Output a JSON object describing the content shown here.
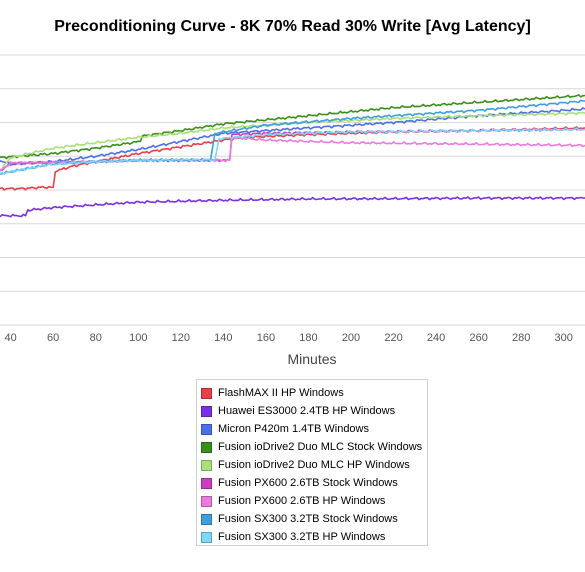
{
  "chart_data": {
    "type": "line",
    "title": "Preconditioning Curve - 8K 70% Read 30% Write [Avg Latency]",
    "xlabel": "Minutes",
    "ylabel": "",
    "xlim": [
      35,
      310
    ],
    "xticks": [
      40,
      60,
      80,
      100,
      120,
      140,
      160,
      180,
      200,
      220,
      240,
      260,
      280,
      300
    ],
    "ylim": [
      0,
      10
    ],
    "grid": true,
    "legend_position": "bottom",
    "series": [
      {
        "name": "FlashMAX II HP Windows",
        "color": "#e8404a",
        "x": [
          35,
          45,
          55,
          60,
          61,
          70,
          80,
          100,
          120,
          140,
          150,
          180,
          220,
          260,
          310
        ],
        "y": [
          5.05,
          5.05,
          5.1,
          5.1,
          5.7,
          5.9,
          6.05,
          6.35,
          6.6,
          6.85,
          6.95,
          7.05,
          7.15,
          7.2,
          7.3
        ]
      },
      {
        "name": "Huawei ES3000 2.4TB HP Windows",
        "color": "#7b2fe6",
        "x": [
          35,
          47,
          48,
          60,
          80,
          100,
          140,
          180,
          220,
          260,
          310
        ],
        "y": [
          4.05,
          4.05,
          4.25,
          4.35,
          4.45,
          4.55,
          4.62,
          4.67,
          4.68,
          4.7,
          4.7
        ]
      },
      {
        "name": "Micron P420m 1.4TB Windows",
        "color": "#4a6fe8",
        "x": [
          35,
          40,
          60,
          80,
          100,
          120,
          140,
          180,
          220,
          260,
          310
        ],
        "y": [
          6.1,
          5.95,
          6.05,
          6.25,
          6.5,
          6.8,
          7.1,
          7.3,
          7.5,
          7.75,
          8.0
        ]
      },
      {
        "name": "Fusion ioDrive2 Duo MLC Stock Windows",
        "color": "#3a8f1c",
        "x": [
          35,
          60,
          80,
          101,
          102,
          120,
          140,
          180,
          220,
          260,
          310
        ],
        "y": [
          6.2,
          6.35,
          6.55,
          6.8,
          7.0,
          7.2,
          7.45,
          7.75,
          8.05,
          8.25,
          8.5
        ]
      },
      {
        "name": "Fusion ioDrive2 Duo MLC HP Windows",
        "color": "#a8e07a",
        "x": [
          35,
          40,
          60,
          80,
          100,
          120,
          140,
          180,
          220,
          260,
          310
        ],
        "y": [
          5.7,
          6.2,
          6.55,
          6.75,
          6.95,
          7.1,
          7.3,
          7.5,
          7.65,
          7.75,
          7.85
        ]
      },
      {
        "name": "Fusion PX600 2.6TB Stock Windows",
        "color": "#c83fbf",
        "x": [
          35,
          40,
          80,
          100,
          140,
          143,
          144,
          160,
          200,
          260,
          310
        ],
        "y": [
          5.7,
          6.0,
          6.05,
          6.1,
          6.1,
          6.1,
          7.05,
          7.1,
          7.15,
          7.2,
          7.25
        ]
      },
      {
        "name": "Fusion PX600 2.6TB HP Windows",
        "color": "#e87ae0",
        "x": [
          35,
          40,
          80,
          100,
          140,
          143,
          144,
          160,
          200,
          260,
          310
        ],
        "y": [
          5.7,
          6.0,
          6.05,
          6.1,
          6.1,
          6.1,
          6.95,
          6.85,
          6.75,
          6.7,
          6.65
        ]
      },
      {
        "name": "Fusion SX300 3.2TB Stock Windows",
        "color": "#3e9ee0",
        "x": [
          35,
          55,
          58,
          80,
          100,
          120,
          134,
          136,
          160,
          200,
          260,
          310
        ],
        "y": [
          5.6,
          5.9,
          5.95,
          6.05,
          6.1,
          6.12,
          6.12,
          7.1,
          7.4,
          7.65,
          7.95,
          8.3
        ]
      },
      {
        "name": "Fusion SX300 3.2TB HP Windows",
        "color": "#7fd6f5",
        "x": [
          35,
          55,
          58,
          80,
          100,
          120,
          136,
          138,
          160,
          200,
          260,
          310
        ],
        "y": [
          5.6,
          5.9,
          5.95,
          6.05,
          6.1,
          6.12,
          6.12,
          6.9,
          7.05,
          7.15,
          7.2,
          7.25
        ]
      }
    ]
  }
}
